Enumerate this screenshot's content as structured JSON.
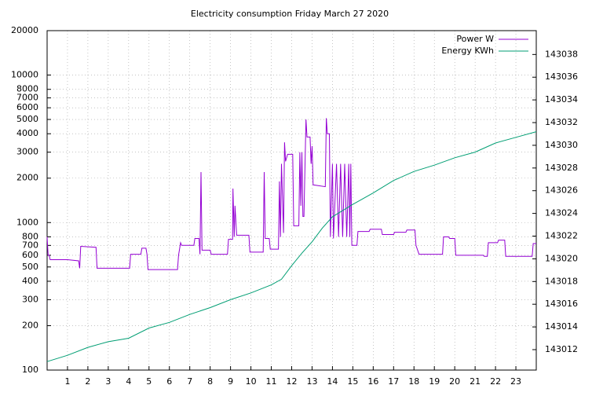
{
  "chart_data": {
    "type": "line",
    "title": "Electricity consumption Friday March 27 2020",
    "xlim": [
      0,
      24
    ],
    "xticks": [
      1,
      2,
      3,
      4,
      5,
      6,
      7,
      8,
      9,
      10,
      11,
      12,
      13,
      14,
      15,
      16,
      17,
      18,
      19,
      20,
      21,
      22,
      23
    ],
    "ylim": [
      100,
      20000
    ],
    "ylog": true,
    "yticks": [
      100,
      200,
      300,
      400,
      500,
      600,
      700,
      800,
      1000,
      2000,
      3000,
      4000,
      5000,
      6000,
      7000,
      8000,
      10000,
      20000
    ],
    "y2lim": [
      143010.2,
      143040.1
    ],
    "y2ticks": [
      143012,
      143014,
      143016,
      143018,
      143020,
      143022,
      143024,
      143026,
      143028,
      143030,
      143032,
      143034,
      143036,
      143038
    ],
    "grid": true,
    "legend": "top-right",
    "series": [
      {
        "name": "Power W",
        "color": "#9400d3",
        "x": [
          0,
          0.05,
          0.1,
          0.15,
          1.0,
          1.55,
          1.6,
          1.65,
          2.4,
          2.45,
          4.05,
          4.1,
          4.6,
          4.65,
          4.85,
          4.9,
          4.95,
          6.4,
          6.45,
          6.55,
          6.6,
          7.2,
          7.25,
          7.45,
          7.5,
          7.55,
          7.6,
          8.0,
          8.05,
          8.85,
          8.9,
          9.1,
          9.12,
          9.18,
          9.22,
          9.3,
          9.9,
          9.95,
          10.6,
          10.65,
          10.7,
          10.9,
          10.95,
          11.35,
          11.4,
          11.45,
          11.5,
          11.6,
          11.65,
          11.7,
          11.8,
          12.05,
          12.1,
          12.35,
          12.4,
          12.45,
          12.5,
          12.55,
          12.6,
          12.7,
          12.75,
          12.9,
          12.95,
          13.0,
          13.05,
          13.65,
          13.7,
          13.75,
          13.85,
          13.9,
          14.0,
          14.05,
          14.2,
          14.3,
          14.4,
          14.5,
          14.6,
          14.7,
          14.8,
          14.85,
          14.9,
          14.95,
          15.2,
          15.25,
          15.8,
          15.85,
          16.4,
          16.45,
          17.0,
          17.05,
          17.6,
          17.65,
          18.05,
          18.1,
          18.25,
          19.4,
          19.45,
          19.7,
          19.75,
          20.0,
          20.05,
          21.4,
          21.45,
          21.6,
          21.65,
          22.1,
          22.15,
          22.45,
          22.5,
          23.8,
          23.85,
          24
        ],
        "values": [
          800,
          600,
          600,
          560,
          560,
          550,
          490,
          690,
          680,
          490,
          490,
          610,
          610,
          670,
          670,
          610,
          480,
          480,
          600,
          730,
          700,
          700,
          780,
          780,
          610,
          2200,
          650,
          650,
          610,
          610,
          770,
          770,
          1700,
          800,
          1300,
          820,
          820,
          630,
          630,
          2200,
          780,
          780,
          660,
          660,
          1900,
          800,
          2500,
          850,
          3500,
          2600,
          2900,
          2900,
          950,
          950,
          3000,
          1300,
          3000,
          1100,
          1100,
          5000,
          3800,
          3800,
          2500,
          3300,
          1800,
          1750,
          5100,
          4000,
          4000,
          800,
          2500,
          780,
          2500,
          800,
          2500,
          800,
          2500,
          800,
          2500,
          800,
          2500,
          700,
          700,
          870,
          870,
          900,
          900,
          830,
          830,
          860,
          860,
          890,
          890,
          700,
          610,
          610,
          800,
          800,
          780,
          780,
          600,
          600,
          590,
          590,
          730,
          730,
          760,
          760,
          590,
          590,
          720,
          720
        ]
      },
      {
        "name": "Energy KWh",
        "color": "#009e73",
        "axis": "y2",
        "x": [
          0,
          1,
          2,
          3,
          4,
          5,
          6,
          7,
          8,
          9,
          10,
          11,
          11.5,
          12,
          12.5,
          13,
          13.5,
          14,
          15,
          16,
          17,
          18,
          19,
          20,
          21,
          22,
          23,
          24
        ],
        "values": [
          143010.95,
          143011.5,
          143012.2,
          143012.7,
          143013.0,
          143013.9,
          143014.4,
          143015.1,
          143015.7,
          143016.4,
          143017.0,
          143017.7,
          143018.2,
          143019.4,
          143020.5,
          143021.5,
          143022.7,
          143023.7,
          143024.8,
          143025.8,
          143026.9,
          143027.7,
          143028.25,
          143028.9,
          143029.4,
          143030.2,
          143030.7,
          143031.2
        ]
      }
    ]
  }
}
